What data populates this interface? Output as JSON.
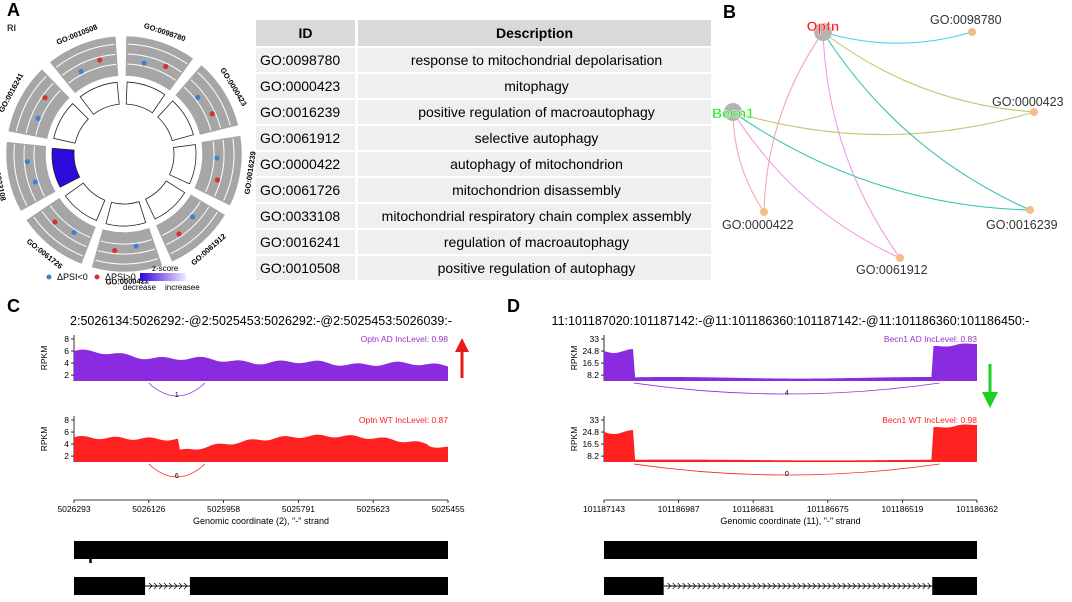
{
  "panels": {
    "a": "A",
    "b": "B",
    "c": "C",
    "d": "D"
  },
  "panelA": {
    "event_type": "RI",
    "legend": {
      "decrease": "ΔPSI<0",
      "increase": "ΔPSI>0",
      "zscore": "z-score",
      "zlow": "decrease",
      "zhigh": "increasee"
    },
    "sectors": [
      {
        "id": "GO:0098780",
        "up": 1,
        "down": 1,
        "z": 0
      },
      {
        "id": "GO:0000423",
        "up": 1,
        "down": 1,
        "z": 0
      },
      {
        "id": "GO:0016239",
        "up": 1,
        "down": 1,
        "z": 0
      },
      {
        "id": "GO:0061912",
        "up": 1,
        "down": 1,
        "z": 0
      },
      {
        "id": "GO:0000422",
        "up": 1,
        "down": 1,
        "z": 0
      },
      {
        "id": "GO:0061726",
        "up": 1,
        "down": 1,
        "z": 0
      },
      {
        "id": "GO:0033108",
        "up": 0,
        "down": 2,
        "z": -1
      },
      {
        "id": "GO:0016241",
        "up": 1,
        "down": 1,
        "z": 0
      },
      {
        "id": "GO:0010508",
        "up": 1,
        "down": 1,
        "z": 0
      }
    ]
  },
  "table": {
    "headers": [
      "ID",
      "Description"
    ],
    "rows": [
      [
        "GO:0098780",
        "response to mitochondrial depolarisation"
      ],
      [
        "GO:0000423",
        "mitophagy"
      ],
      [
        "GO:0016239",
        "positive regulation of macroautophagy"
      ],
      [
        "GO:0061912",
        "selective autophagy"
      ],
      [
        "GO:0000422",
        "autophagy of mitochondrion"
      ],
      [
        "GO:0061726",
        "mitochondrion disassembly"
      ],
      [
        "GO:0033108",
        "mitochondrial respiratory chain complex assembly"
      ],
      [
        "GO:0016241",
        "regulation of macroautophagy"
      ],
      [
        "GO:0010508",
        "positive regulation of autophagy"
      ]
    ]
  },
  "network": {
    "genes": [
      {
        "name": "Optn",
        "color": "#ff2020"
      },
      {
        "name": "Becn1",
        "color": "#22ee22"
      }
    ],
    "terms": [
      {
        "id": "GO:0098780",
        "color": "#22ccee",
        "genes": [
          "Optn"
        ]
      },
      {
        "id": "GO:0000423",
        "color": "#bbbb55",
        "genes": [
          "Optn",
          "Becn1"
        ]
      },
      {
        "id": "GO:0016239",
        "color": "#11bbaa",
        "genes": [
          "Optn",
          "Becn1"
        ]
      },
      {
        "id": "GO:0061912",
        "color": "#ee88dd",
        "genes": [
          "Optn",
          "Becn1"
        ]
      },
      {
        "id": "GO:0000422",
        "color": "#f29b9b",
        "genes": [
          "Optn",
          "Becn1"
        ]
      }
    ]
  },
  "sashimi": {
    "c": {
      "coord": "2:5026134:5026292:-@2:5025453:5026292:-@2:5025453:5026039:-",
      "gene": "Optn",
      "direction": "up",
      "xlabel": "Genomic coordinate (2), \"-\" strand",
      "xticks": [
        "5026293",
        "5026126",
        "5025958",
        "5025791",
        "5025623",
        "5025455"
      ],
      "tracks": [
        {
          "label": "Optn AD IncLevel: 0.98",
          "ylabel": "RPKM",
          "yticks": [
            "8",
            "6",
            "4",
            "2"
          ],
          "junction": "1",
          "color": "#8a2be2",
          "label_color": "#9932cc"
        },
        {
          "label": "Optn WT IncLevel: 0.87",
          "ylabel": "RPKM",
          "yticks": [
            "8",
            "6",
            "4",
            "2"
          ],
          "junction": "6",
          "color": "#ff2020",
          "label_color": "#ff2020"
        }
      ]
    },
    "d": {
      "coord": "11:101187020:101187142:-@11:101186360:101187142:-@11:101186360:101186450:-",
      "gene": "Becn1",
      "direction": "down",
      "xlabel": "Genomic coordinate (11), \"-\" strand",
      "xticks": [
        "101187143",
        "101186987",
        "101186831",
        "101186675",
        "101186519",
        "101186362"
      ],
      "tracks": [
        {
          "label": "Becn1 AD IncLevel: 0.83",
          "ylabel": "RPKM",
          "yticks": [
            "33",
            "24.8",
            "16.5",
            "8.2"
          ],
          "junction": "4",
          "color": "#8a2be2",
          "label_color": "#9932cc"
        },
        {
          "label": "Becn1 WT IncLevel: 0.98",
          "ylabel": "RPKM",
          "yticks": [
            "33",
            "24.8",
            "16.5",
            "8.2"
          ],
          "junction": "0",
          "color": "#ff2020",
          "label_color": "#ff2020"
        }
      ]
    }
  }
}
